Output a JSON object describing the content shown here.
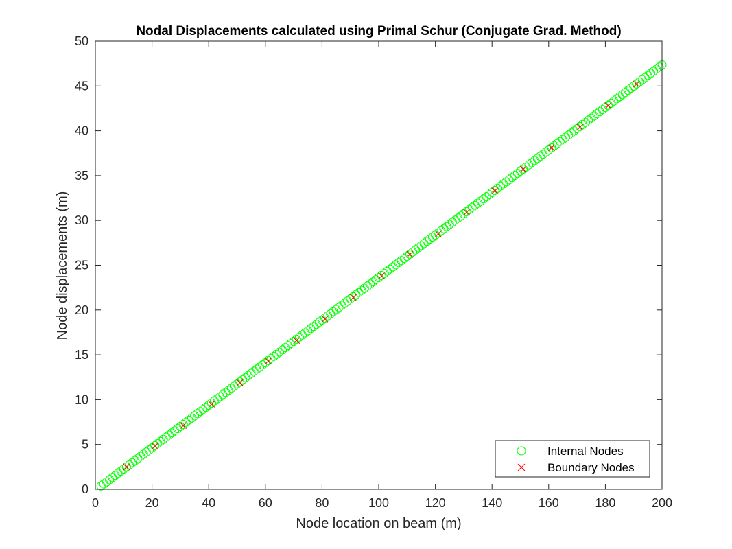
{
  "chart_data": {
    "type": "scatter",
    "title": "Nodal Displacements calculated using Primal Schur (Conjugate Grad. Method)",
    "xlabel": "Node location on beam (m)",
    "ylabel": "Node displacements (m)",
    "xlim": [
      0,
      200
    ],
    "ylim": [
      0,
      50
    ],
    "xticks": [
      0,
      20,
      40,
      60,
      80,
      100,
      120,
      140,
      160,
      180,
      200
    ],
    "yticks": [
      0,
      5,
      10,
      15,
      20,
      25,
      30,
      35,
      40,
      45,
      50
    ],
    "grid": false,
    "box": true,
    "legend_position": "bottom-right",
    "series": [
      {
        "name": "Internal Nodes",
        "marker": "circle",
        "color": "#00ff00",
        "x_start": 2,
        "x_end": 200,
        "x_step": 1,
        "y_start": 0.36,
        "y_end": 47.36
      },
      {
        "name": "Boundary Nodes",
        "marker": "x",
        "color": "#ff0000",
        "x": [
          11,
          21,
          31,
          41,
          51,
          61,
          71,
          81,
          91,
          101,
          111,
          121,
          131,
          141,
          151,
          161,
          171,
          181,
          191
        ],
        "y": [
          2.5,
          4.8,
          7.1,
          9.5,
          11.9,
          14.3,
          16.6,
          19.0,
          21.4,
          23.8,
          26.2,
          28.5,
          30.9,
          33.3,
          35.7,
          38.1,
          40.4,
          42.8,
          45.2
        ]
      }
    ]
  }
}
